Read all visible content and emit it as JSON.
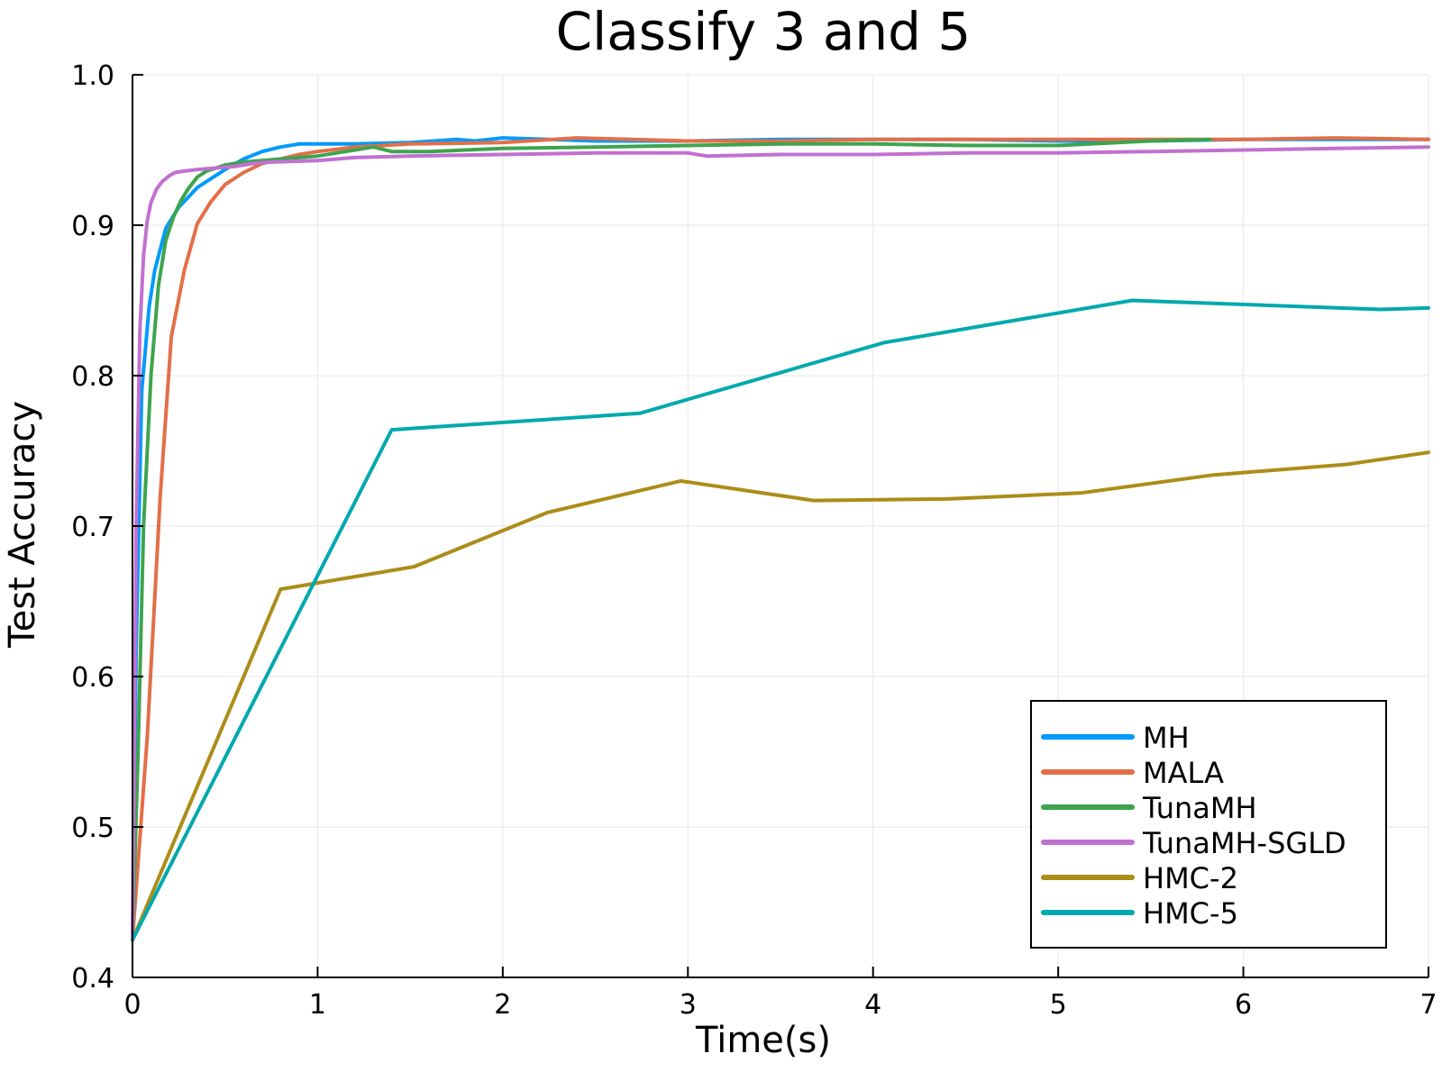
{
  "chart_data": {
    "type": "line",
    "title": "Classify 3 and 5",
    "xlabel": "Time(s)",
    "ylabel": "Test Accuracy",
    "xlim": [
      0,
      7
    ],
    "ylim": [
      0.4,
      1.0
    ],
    "xticks": [
      0,
      1,
      2,
      3,
      4,
      5,
      6,
      7
    ],
    "xtick_labels": [
      "0",
      "1",
      "2",
      "3",
      "4",
      "5",
      "6",
      "7"
    ],
    "yticks": [
      0.4,
      0.5,
      0.6,
      0.7,
      0.8,
      0.9,
      1.0
    ],
    "ytick_labels": [
      "0.4",
      "0.5",
      "0.6",
      "0.7",
      "0.8",
      "0.9",
      "1.0"
    ],
    "grid": true,
    "legend_position": "bottom-right",
    "series": [
      {
        "name": "MH",
        "color": "#009AFA",
        "x": [
          0,
          0.02,
          0.05,
          0.09,
          0.12,
          0.18,
          0.25,
          0.35,
          0.5,
          0.6,
          0.7,
          0.8,
          0.9,
          1.0,
          1.2,
          1.5,
          1.75,
          1.85,
          2.0,
          2.5,
          3.0,
          3.5,
          4.0,
          4.5,
          5.0,
          5.5,
          6.0,
          6.5,
          7.0
        ],
        "y": [
          0.425,
          0.62,
          0.79,
          0.846,
          0.87,
          0.898,
          0.912,
          0.925,
          0.937,
          0.944,
          0.949,
          0.952,
          0.954,
          0.954,
          0.954,
          0.955,
          0.957,
          0.956,
          0.958,
          0.956,
          0.956,
          0.957,
          0.957,
          0.957,
          0.956,
          0.956,
          0.957,
          0.957,
          0.957
        ]
      },
      {
        "name": "MALA",
        "color": "#E36F47",
        "x": [
          0,
          0.08,
          0.15,
          0.21,
          0.28,
          0.35,
          0.42,
          0.5,
          0.6,
          0.7,
          0.8,
          0.9,
          1.0,
          1.2,
          1.5,
          2.0,
          2.4,
          2.7,
          3.0,
          3.5,
          4.0,
          4.5,
          5.0,
          5.5,
          6.0,
          6.5,
          7.0
        ],
        "y": [
          0.425,
          0.56,
          0.72,
          0.826,
          0.87,
          0.901,
          0.915,
          0.927,
          0.935,
          0.941,
          0.944,
          0.947,
          0.949,
          0.952,
          0.954,
          0.955,
          0.958,
          0.957,
          0.956,
          0.956,
          0.957,
          0.957,
          0.957,
          0.957,
          0.957,
          0.958,
          0.957
        ]
      },
      {
        "name": "TunaMH",
        "color": "#3EA44E",
        "x": [
          0,
          0.03,
          0.06,
          0.1,
          0.14,
          0.18,
          0.22,
          0.26,
          0.3,
          0.35,
          0.4,
          0.5,
          0.6,
          0.7,
          0.8,
          0.9,
          1.0,
          1.2,
          1.3,
          1.4,
          1.6,
          2.0,
          2.5,
          3.0,
          3.5,
          4.0,
          4.5,
          5.0,
          5.5,
          5.82
        ],
        "y": [
          0.425,
          0.55,
          0.7,
          0.8,
          0.86,
          0.89,
          0.905,
          0.916,
          0.924,
          0.932,
          0.936,
          0.94,
          0.942,
          0.943,
          0.944,
          0.945,
          0.946,
          0.95,
          0.952,
          0.949,
          0.949,
          0.951,
          0.952,
          0.953,
          0.954,
          0.954,
          0.953,
          0.953,
          0.956,
          0.957
        ]
      },
      {
        "name": "TunaMH-SGLD",
        "color": "#C270D2",
        "x": [
          0,
          0.02,
          0.04,
          0.06,
          0.08,
          0.1,
          0.13,
          0.16,
          0.2,
          0.23,
          0.28,
          0.35,
          0.45,
          0.55,
          0.65,
          0.75,
          1.0,
          1.2,
          1.5,
          2.0,
          2.5,
          3.0,
          3.1,
          3.5,
          4.0,
          4.5,
          5.0,
          5.5,
          6.0,
          6.5,
          7.0
        ],
        "y": [
          0.425,
          0.7,
          0.83,
          0.88,
          0.903,
          0.915,
          0.924,
          0.929,
          0.933,
          0.935,
          0.936,
          0.937,
          0.938,
          0.939,
          0.941,
          0.942,
          0.943,
          0.945,
          0.946,
          0.947,
          0.948,
          0.948,
          0.946,
          0.947,
          0.947,
          0.948,
          0.948,
          0.949,
          0.95,
          0.951,
          0.952
        ]
      },
      {
        "name": "HMC-2",
        "color": "#AC8D18",
        "x": [
          0,
          0.8,
          1.52,
          2.24,
          2.96,
          3.68,
          4.4,
          5.12,
          5.84,
          6.56,
          7.0
        ],
        "y": [
          0.425,
          0.658,
          0.673,
          0.709,
          0.73,
          0.717,
          0.718,
          0.722,
          0.734,
          0.741,
          0.749
        ]
      },
      {
        "name": "HMC-5",
        "color": "#00A9AD",
        "x": [
          0,
          1.4,
          2.74,
          4.06,
          5.4,
          6.74,
          7.0
        ],
        "y": [
          0.425,
          0.764,
          0.775,
          0.822,
          0.85,
          0.844,
          0.845
        ]
      }
    ]
  }
}
